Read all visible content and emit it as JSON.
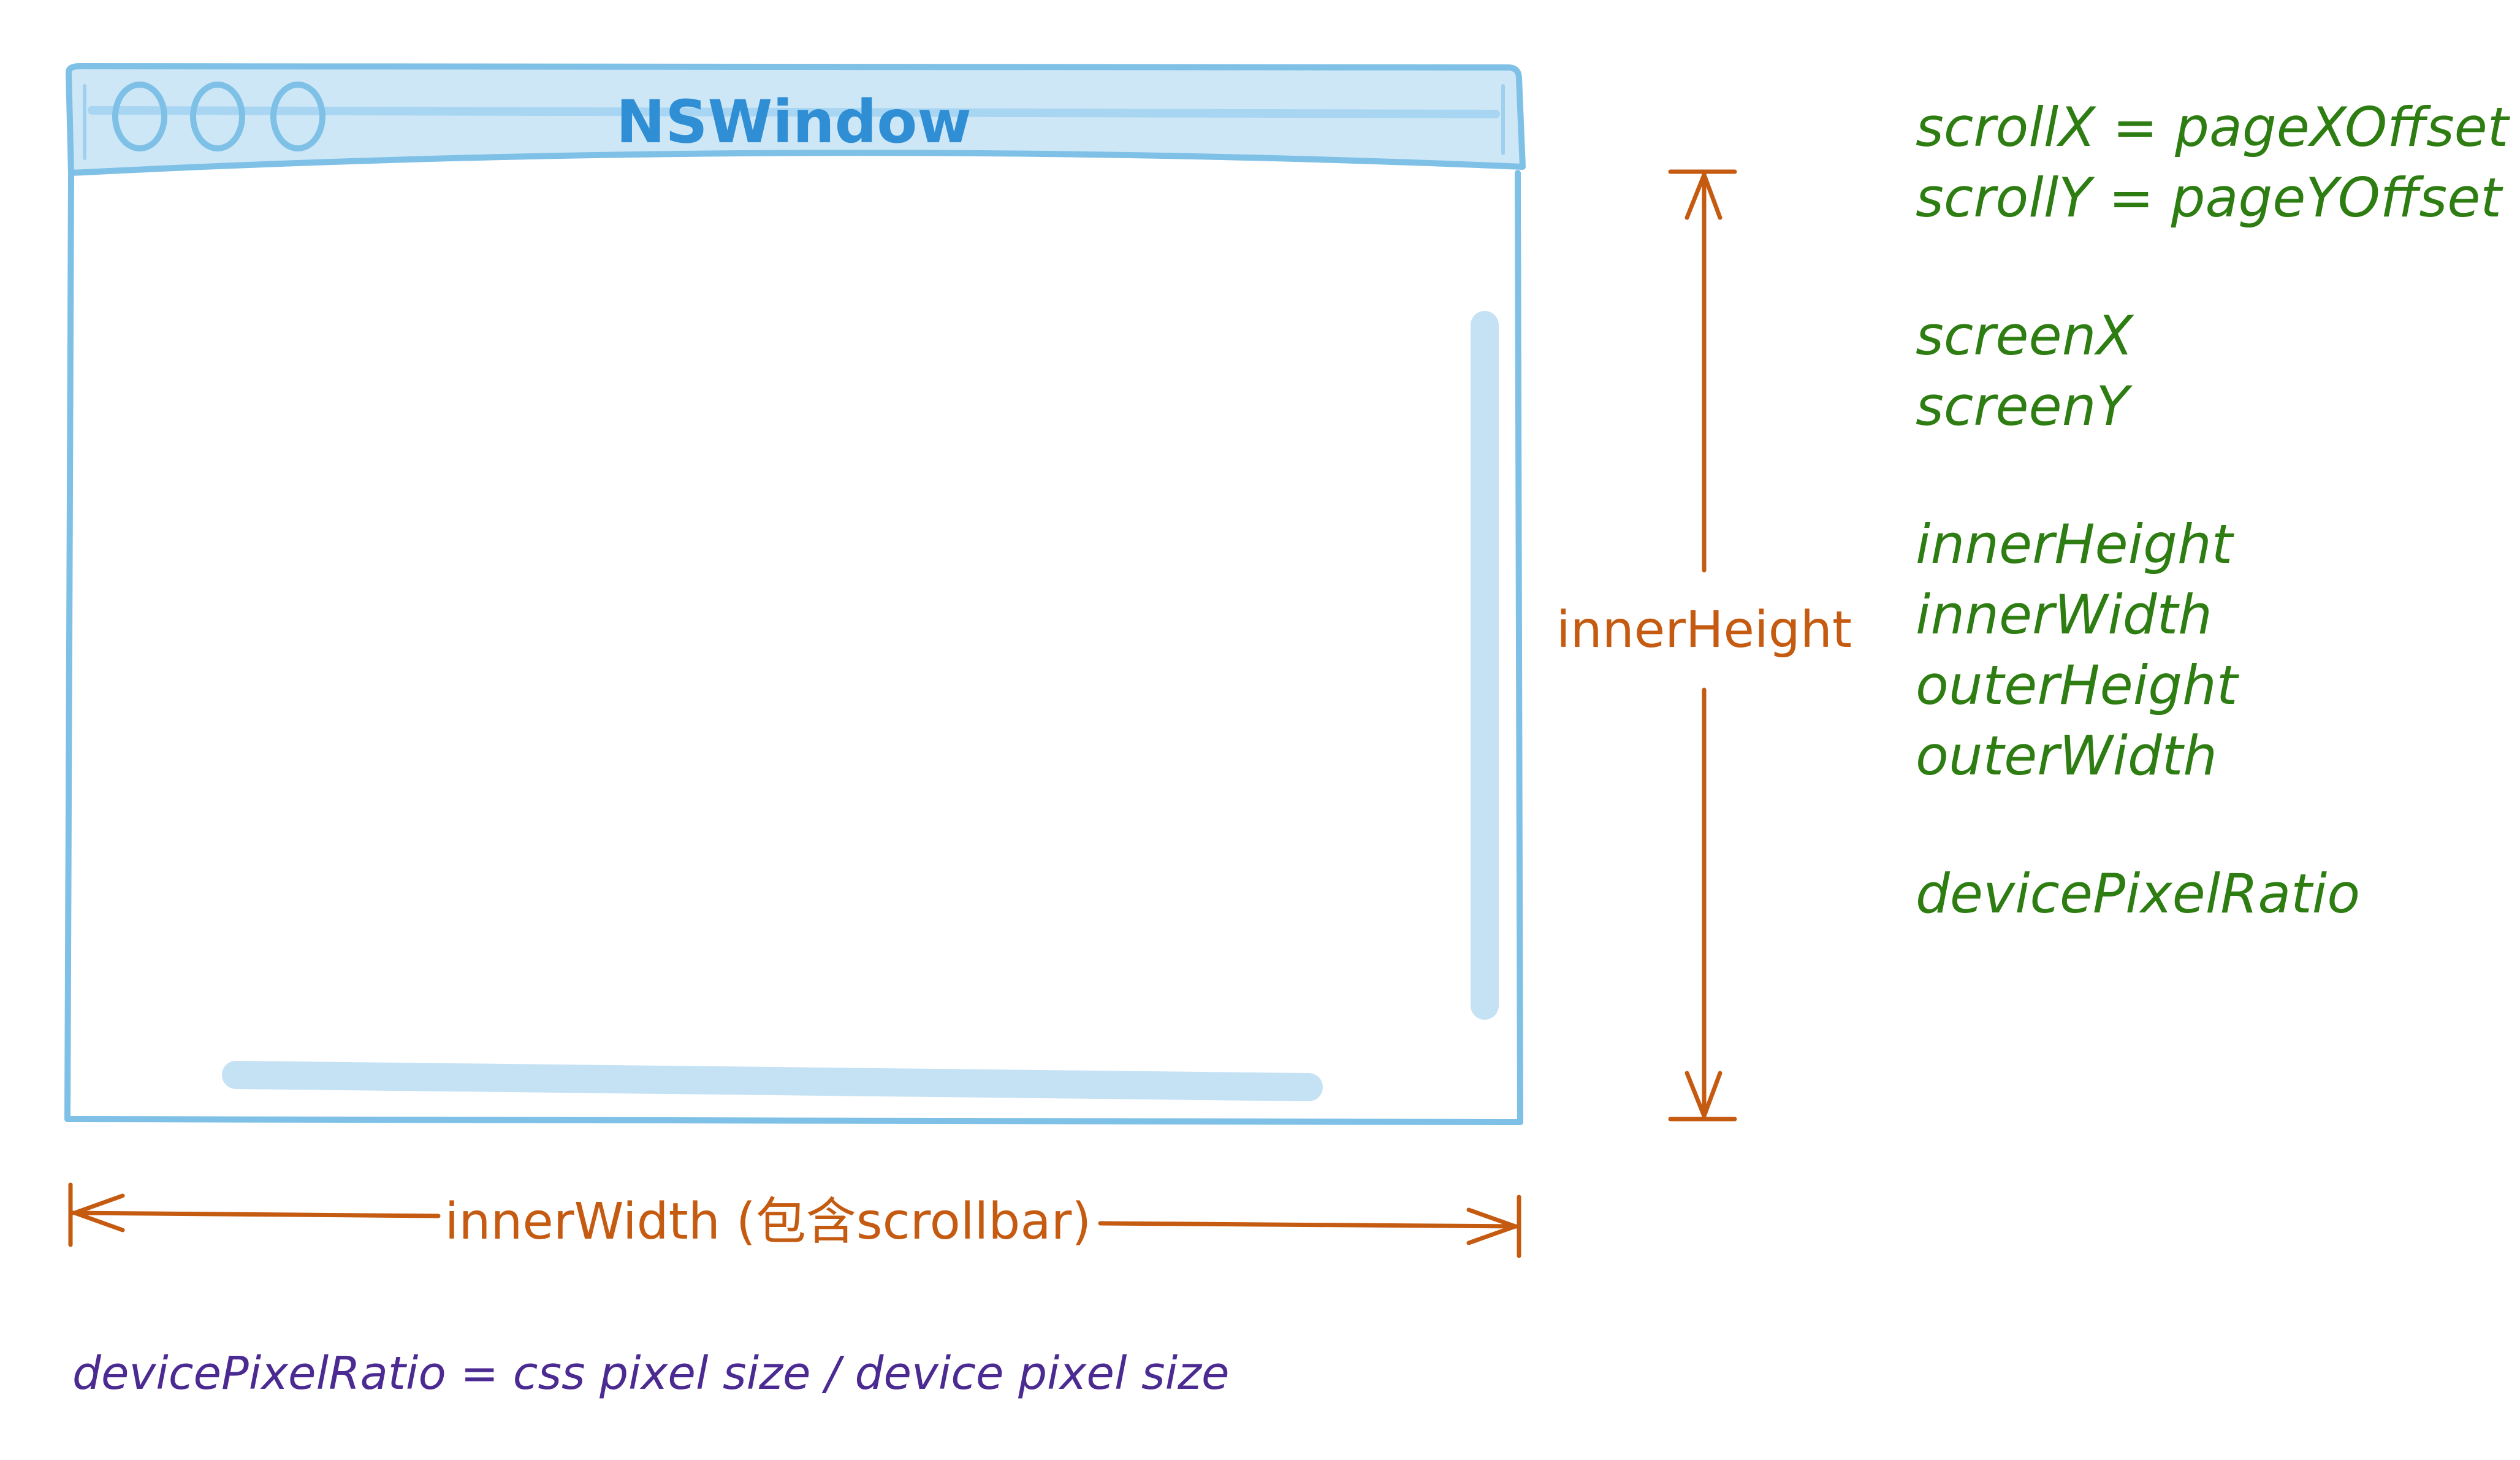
{
  "colors": {
    "window_stroke": "#7ec0e6",
    "titlebar_fill": "#cde7f7",
    "title_text": "#2f8ed4",
    "scrollbar": "#c5e2f5",
    "measure": "#c55a11",
    "property": "#2e7d12",
    "formula": "#4b2a91"
  },
  "window": {
    "title": "NSWindow",
    "buttons": [
      "circle",
      "circle",
      "circle"
    ]
  },
  "dimensions": {
    "height_label": "innerHeight",
    "width_label": "innerWidth (包含scrollbar)"
  },
  "properties": {
    "groups": [
      [
        "scrollX = pageXOffset",
        "scrollY = pageYOffset"
      ],
      [
        "screenX",
        "screenY"
      ],
      [
        "innerHeight",
        "innerWidth",
        "outerHeight",
        "outerWidth"
      ],
      [
        "devicePixelRatio"
      ]
    ]
  },
  "formula": "devicePixelRatio = css pixel size / device pixel size"
}
